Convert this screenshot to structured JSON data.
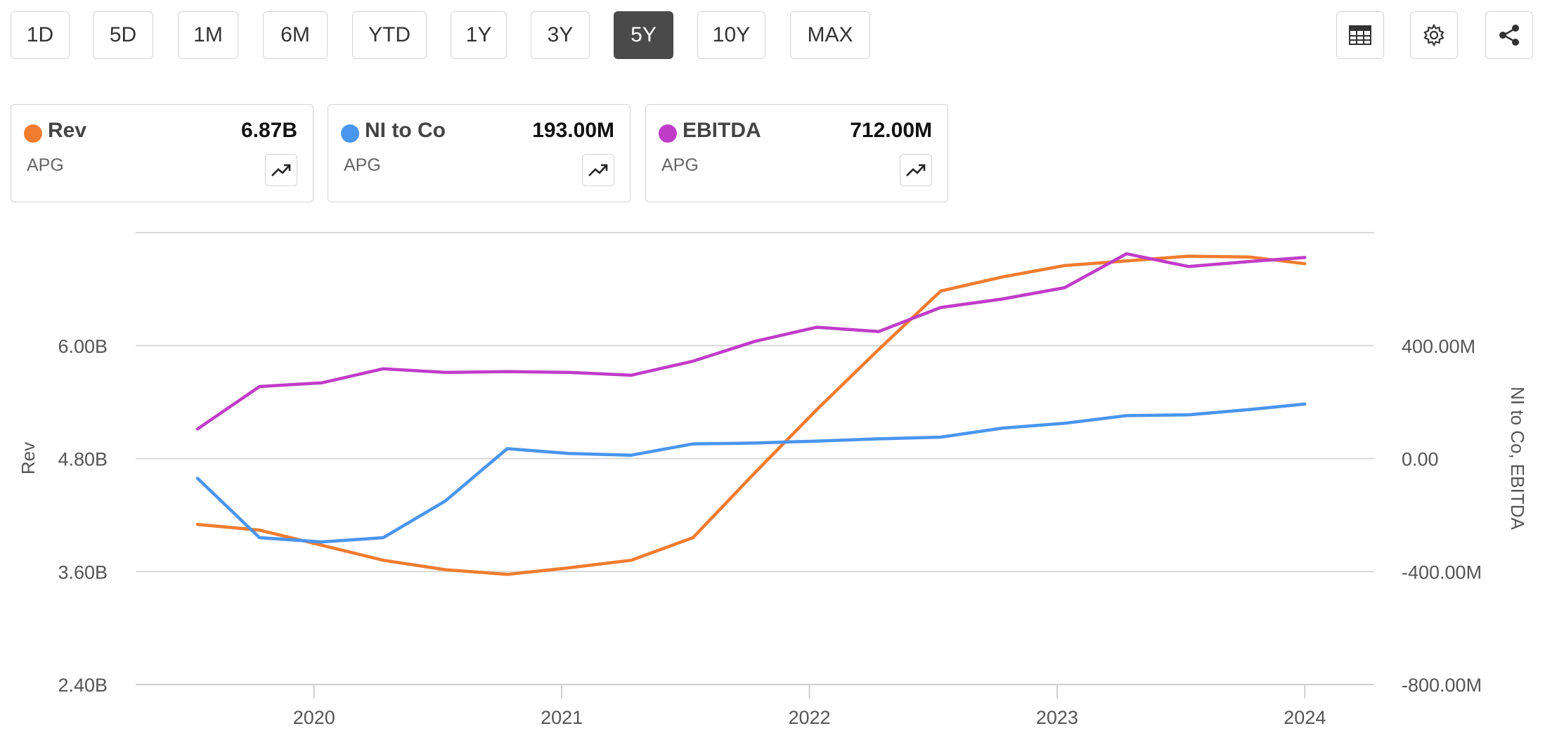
{
  "ranges": {
    "buttons": [
      {
        "label": "1D"
      },
      {
        "label": "5D"
      },
      {
        "label": "1M"
      },
      {
        "label": "6M"
      },
      {
        "label": "YTD"
      },
      {
        "label": "1Y"
      },
      {
        "label": "3Y"
      },
      {
        "label": "5Y"
      },
      {
        "label": "10Y"
      },
      {
        "label": "MAX"
      }
    ],
    "selected": "5Y"
  },
  "toolbar": {
    "table_icon": "table-icon",
    "settings_icon": "gear-icon",
    "share_icon": "share-icon"
  },
  "cards": [
    {
      "name": "Rev",
      "value": "6.87B",
      "ticker": "APG",
      "color": "#f07c30"
    },
    {
      "name": "NI to Co",
      "value": "193.00M",
      "ticker": "APG",
      "color": "#4a95ee"
    },
    {
      "name": "EBITDA",
      "value": "712.00M",
      "ticker": "APG",
      "color": "#c03cc8"
    }
  ],
  "chart_data": {
    "type": "line",
    "x_tick_labels": [
      "2020",
      "2021",
      "2022",
      "2023",
      "2024"
    ],
    "left_axis": {
      "label": "Rev",
      "tick_labels": [
        "2.40B",
        "3.60B",
        "4.80B",
        "6.00B"
      ],
      "ticks": [
        2.4,
        3.6,
        4.8,
        6.0
      ],
      "range": [
        2.4,
        7.2
      ],
      "unit": "B"
    },
    "right_axis": {
      "label": "NI to Co, EBITDA",
      "tick_labels": [
        "-800.00M",
        "-400.00M",
        "0.00",
        "400.00M"
      ],
      "ticks": [
        -800,
        -400,
        0,
        400
      ],
      "range": [
        -800,
        800
      ],
      "unit": "M"
    },
    "x": [
      2019.53,
      2019.78,
      2020.03,
      2020.28,
      2020.53,
      2020.78,
      2021.03,
      2021.28,
      2021.53,
      2021.78,
      2022.03,
      2022.28,
      2022.53,
      2022.78,
      2023.03,
      2023.28,
      2023.53,
      2023.78,
      2024.0
    ],
    "series": [
      {
        "name": "Rev",
        "axis": "left",
        "color": "#f07c30",
        "values": [
          4.1,
          4.04,
          3.88,
          3.72,
          3.62,
          3.57,
          3.64,
          3.72,
          3.96,
          4.65,
          5.32,
          5.96,
          6.58,
          6.73,
          6.85,
          6.9,
          6.95,
          6.94,
          6.87
        ]
      },
      {
        "name": "NI to Co",
        "axis": "right",
        "color": "#4a95ee",
        "values": [
          -70,
          -280,
          -295,
          -280,
          -150,
          35,
          18,
          12,
          52,
          55,
          62,
          70,
          76,
          108,
          125,
          152,
          155,
          174,
          193
        ]
      },
      {
        "name": "EBITDA",
        "axis": "right",
        "color": "#c03cc8",
        "values": [
          105,
          255,
          268,
          318,
          305,
          308,
          305,
          295,
          345,
          415,
          465,
          450,
          535,
          565,
          605,
          725,
          680,
          698,
          712
        ]
      }
    ],
    "grid": true,
    "legend": "top-left cards"
  }
}
